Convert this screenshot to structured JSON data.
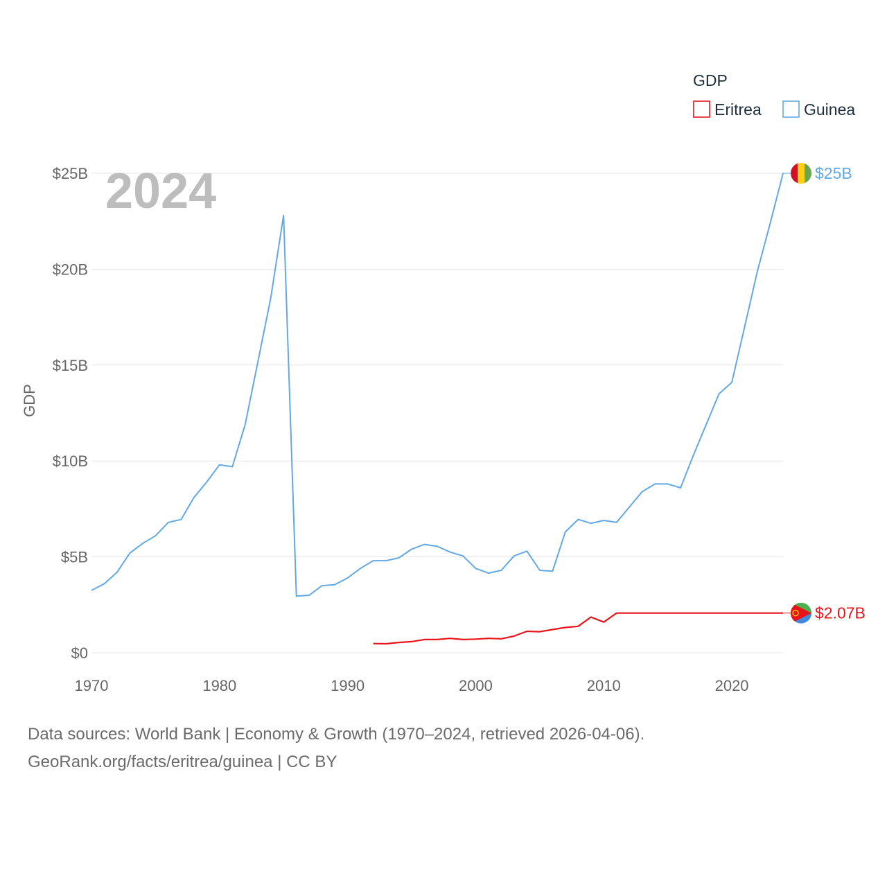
{
  "chart_data": {
    "type": "line",
    "title": "",
    "xlabel": "",
    "ylabel": "GDP",
    "year_label": "2024",
    "xlim": [
      1970,
      2024
    ],
    "ylim": [
      0,
      25
    ],
    "x_ticks": [
      {
        "value": 1970,
        "label": "1970"
      },
      {
        "value": 1980,
        "label": "1980"
      },
      {
        "value": 1990,
        "label": "1990"
      },
      {
        "value": 2000,
        "label": "2000"
      },
      {
        "value": 2010,
        "label": "2010"
      },
      {
        "value": 2020,
        "label": "2020"
      }
    ],
    "y_ticks": [
      {
        "value": 0,
        "label": "$0"
      },
      {
        "value": 5,
        "label": "$5B"
      },
      {
        "value": 10,
        "label": "$10B"
      },
      {
        "value": 15,
        "label": "$15B"
      },
      {
        "value": 20,
        "label": "$20B"
      },
      {
        "value": 25,
        "label": "$25B"
      }
    ],
    "grid": true,
    "legend": {
      "title": "GDP",
      "placement": "top-right",
      "entries": [
        {
          "name": "Eritrea",
          "color": "#e8141a"
        },
        {
          "name": "Guinea",
          "color": "#62a8e5"
        }
      ]
    },
    "series": [
      {
        "name": "Guinea",
        "color": "#62a8e5",
        "end_label": "$25B",
        "flag_colors": [
          "#ce1126",
          "#fcd116",
          "#6aa84f"
        ],
        "points": [
          [
            1970,
            3.25
          ],
          [
            1971,
            3.6
          ],
          [
            1972,
            4.2
          ],
          [
            1973,
            5.2
          ],
          [
            1974,
            5.7
          ],
          [
            1975,
            6.1
          ],
          [
            1976,
            6.8
          ],
          [
            1977,
            6.95
          ],
          [
            1978,
            8.1
          ],
          [
            1979,
            8.9
          ],
          [
            1980,
            9.8
          ],
          [
            1981,
            9.7
          ],
          [
            1982,
            11.9
          ],
          [
            1983,
            15.2
          ],
          [
            1984,
            18.5
          ],
          [
            1985,
            22.8
          ],
          [
            1986,
            2.95
          ],
          [
            1987,
            3.0
          ],
          [
            1988,
            3.5
          ],
          [
            1989,
            3.55
          ],
          [
            1990,
            3.9
          ],
          [
            1991,
            4.4
          ],
          [
            1992,
            4.8
          ],
          [
            1993,
            4.8
          ],
          [
            1994,
            4.95
          ],
          [
            1995,
            5.4
          ],
          [
            1996,
            5.65
          ],
          [
            1997,
            5.55
          ],
          [
            1998,
            5.25
          ],
          [
            1999,
            5.05
          ],
          [
            2000,
            4.4
          ],
          [
            2001,
            4.15
          ],
          [
            2002,
            4.3
          ],
          [
            2003,
            5.05
          ],
          [
            2004,
            5.3
          ],
          [
            2005,
            4.3
          ],
          [
            2006,
            4.25
          ],
          [
            2007,
            6.3
          ],
          [
            2008,
            6.95
          ],
          [
            2009,
            6.75
          ],
          [
            2010,
            6.9
          ],
          [
            2011,
            6.8
          ],
          [
            2012,
            7.6
          ],
          [
            2013,
            8.4
          ],
          [
            2014,
            8.8
          ],
          [
            2015,
            8.8
          ],
          [
            2016,
            8.6
          ],
          [
            2017,
            10.3
          ],
          [
            2018,
            11.9
          ],
          [
            2019,
            13.5
          ],
          [
            2020,
            14.1
          ],
          [
            2021,
            17.0
          ],
          [
            2022,
            19.9
          ],
          [
            2023,
            22.4
          ],
          [
            2024,
            25.0
          ]
        ]
      },
      {
        "name": "Eritrea",
        "color": "#e8141a",
        "end_label": "$2.07B",
        "flag_colors": [
          "#4caf50",
          "#e8141a",
          "#4189dd"
        ],
        "points": [
          [
            1992,
            0.48
          ],
          [
            1993,
            0.47
          ],
          [
            1994,
            0.54
          ],
          [
            1995,
            0.58
          ],
          [
            1996,
            0.69
          ],
          [
            1997,
            0.69
          ],
          [
            1998,
            0.75
          ],
          [
            1999,
            0.69
          ],
          [
            2000,
            0.71
          ],
          [
            2001,
            0.75
          ],
          [
            2002,
            0.73
          ],
          [
            2003,
            0.87
          ],
          [
            2004,
            1.12
          ],
          [
            2005,
            1.1
          ],
          [
            2006,
            1.21
          ],
          [
            2007,
            1.32
          ],
          [
            2008,
            1.38
          ],
          [
            2009,
            1.86
          ],
          [
            2010,
            1.6
          ],
          [
            2011,
            2.07
          ],
          [
            2024,
            2.07
          ]
        ]
      }
    ]
  },
  "footer": {
    "line1": "Data sources: World Bank | Economy & Growth (1970–2024, retrieved 2026-04-06).",
    "line2": "GeoRank.org/facts/eritrea/guinea | CC BY"
  }
}
